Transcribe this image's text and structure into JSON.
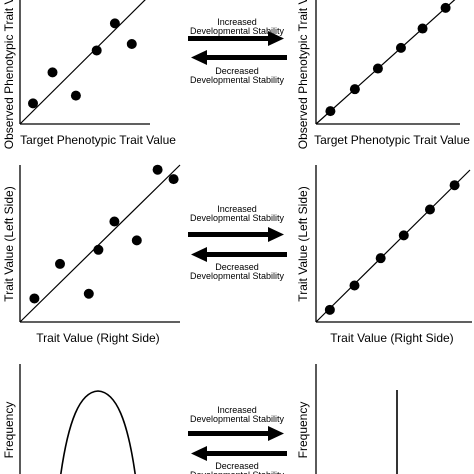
{
  "rows": [
    {
      "ylabel": "Observed Phenotypic Trait Value",
      "xlabel": "Target Phenotypic Trait Value",
      "left_points": [
        [
          0.1,
          0.16
        ],
        [
          0.25,
          0.4
        ],
        [
          0.43,
          0.22
        ],
        [
          0.59,
          0.57
        ],
        [
          0.73,
          0.78
        ],
        [
          0.86,
          0.62
        ]
      ],
      "right_points": [
        [
          0.1,
          0.1
        ],
        [
          0.27,
          0.27
        ],
        [
          0.43,
          0.43
        ],
        [
          0.59,
          0.59
        ],
        [
          0.74,
          0.74
        ],
        [
          0.9,
          0.9
        ]
      ]
    },
    {
      "ylabel": "Trait Value (Left Side)",
      "xlabel": "Trait Value (Right Side)",
      "left_points": [
        [
          0.09,
          0.15
        ],
        [
          0.25,
          0.37
        ],
        [
          0.43,
          0.18
        ],
        [
          0.49,
          0.46
        ],
        [
          0.59,
          0.64
        ],
        [
          0.73,
          0.52
        ],
        [
          0.86,
          0.97
        ],
        [
          0.96,
          0.91
        ]
      ],
      "right_points": [
        [
          0.09,
          0.08
        ],
        [
          0.25,
          0.24
        ],
        [
          0.42,
          0.42
        ],
        [
          0.57,
          0.57
        ],
        [
          0.74,
          0.74
        ],
        [
          0.9,
          0.9
        ]
      ]
    },
    {
      "ylabel": "Frequency",
      "xlabel": ""
    }
  ],
  "arrows": {
    "increased": "Increased Developmental Stability",
    "decreased": "Decreased Developmental Stability"
  }
}
